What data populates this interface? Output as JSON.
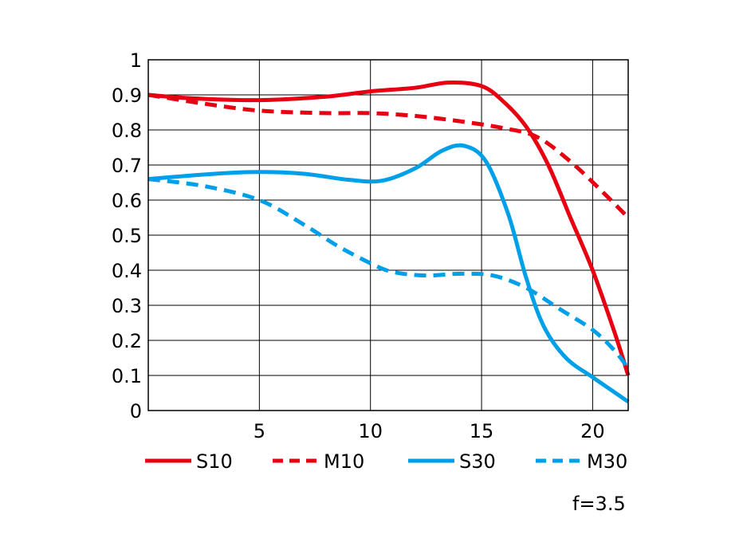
{
  "chart_data": {
    "type": "line",
    "xlim": [
      0,
      21.6
    ],
    "ylim": [
      0,
      1
    ],
    "x_ticks": [
      5,
      10,
      15,
      20
    ],
    "x_tick_labels": [
      "5",
      "10",
      "15",
      "20"
    ],
    "y_ticks": [
      0,
      0.1,
      0.2,
      0.3,
      0.4,
      0.5,
      0.6,
      0.7,
      0.8,
      0.9,
      1
    ],
    "y_tick_labels": [
      "0",
      "0.1",
      "0.2",
      "0.3",
      "0.4",
      "0.5",
      "0.6",
      "0.7",
      "0.8",
      "0.9",
      "1"
    ],
    "grid": true,
    "legend_position": "bottom",
    "annotation": "f=3.5",
    "series": [
      {
        "name": "S10",
        "color": "#e60012",
        "dash": "solid",
        "points": [
          [
            0,
            0.9
          ],
          [
            2,
            0.89
          ],
          [
            5,
            0.885
          ],
          [
            8,
            0.895
          ],
          [
            10,
            0.91
          ],
          [
            12,
            0.92
          ],
          [
            13.5,
            0.935
          ],
          [
            15,
            0.925
          ],
          [
            16,
            0.88
          ],
          [
            17,
            0.81
          ],
          [
            18,
            0.7
          ],
          [
            19,
            0.55
          ],
          [
            20,
            0.4
          ],
          [
            21,
            0.22
          ],
          [
            21.6,
            0.1
          ]
        ]
      },
      {
        "name": "M10",
        "color": "#e60012",
        "dash": "dashed",
        "points": [
          [
            0,
            0.9
          ],
          [
            2.5,
            0.875
          ],
          [
            5,
            0.855
          ],
          [
            8,
            0.848
          ],
          [
            10,
            0.848
          ],
          [
            12,
            0.84
          ],
          [
            14,
            0.825
          ],
          [
            16,
            0.805
          ],
          [
            17.5,
            0.78
          ],
          [
            19,
            0.71
          ],
          [
            20.5,
            0.62
          ],
          [
            21.6,
            0.55
          ]
        ]
      },
      {
        "name": "S30",
        "color": "#00a0e9",
        "dash": "solid",
        "points": [
          [
            0,
            0.66
          ],
          [
            3,
            0.675
          ],
          [
            5,
            0.68
          ],
          [
            7,
            0.675
          ],
          [
            9,
            0.658
          ],
          [
            10.5,
            0.655
          ],
          [
            12,
            0.69
          ],
          [
            13.2,
            0.74
          ],
          [
            14.2,
            0.755
          ],
          [
            15.2,
            0.71
          ],
          [
            16.2,
            0.56
          ],
          [
            17,
            0.38
          ],
          [
            17.8,
            0.24
          ],
          [
            18.8,
            0.15
          ],
          [
            20,
            0.095
          ],
          [
            20.8,
            0.06
          ],
          [
            21.6,
            0.025
          ]
        ]
      },
      {
        "name": "M30",
        "color": "#00a0e9",
        "dash": "dashed",
        "points": [
          [
            0,
            0.66
          ],
          [
            2.5,
            0.64
          ],
          [
            5,
            0.6
          ],
          [
            7,
            0.53
          ],
          [
            8.5,
            0.47
          ],
          [
            10,
            0.42
          ],
          [
            11,
            0.395
          ],
          [
            12.5,
            0.385
          ],
          [
            14,
            0.39
          ],
          [
            15.5,
            0.385
          ],
          [
            17,
            0.35
          ],
          [
            18.5,
            0.29
          ],
          [
            20,
            0.23
          ],
          [
            21,
            0.17
          ],
          [
            21.6,
            0.12
          ]
        ]
      }
    ]
  }
}
